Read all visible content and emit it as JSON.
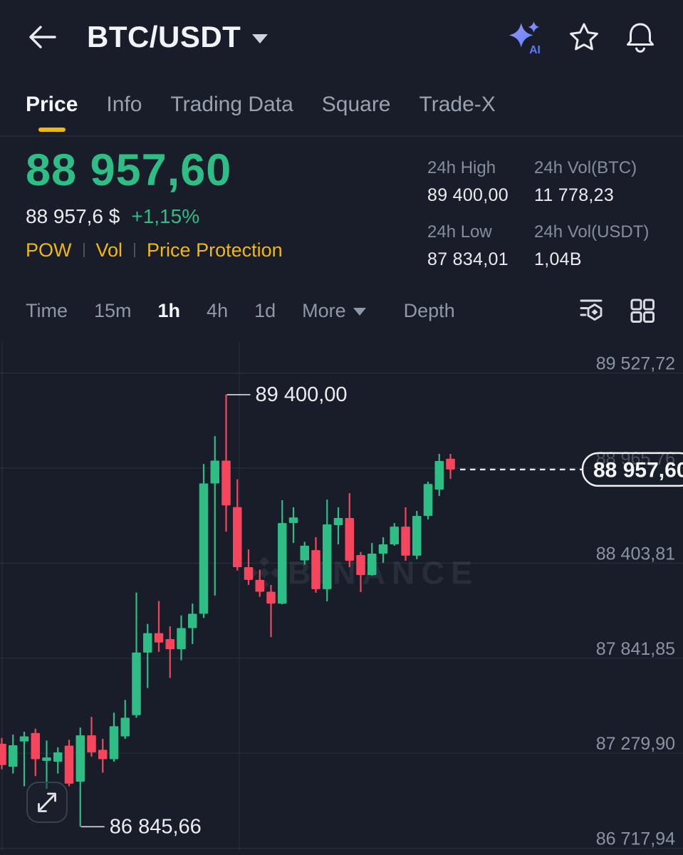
{
  "header": {
    "symbol": "BTC/USDT",
    "icons": {
      "back": "back-arrow",
      "ai": "ai-sparkle",
      "favorite": "star-outline",
      "notifications": "bell-outline",
      "symbol_caret": "chevron-down"
    }
  },
  "tabs": {
    "items": [
      "Price",
      "Info",
      "Trading Data",
      "Square",
      "Trade-X"
    ],
    "active": "Price"
  },
  "ticker": {
    "last_price": "88 957,60",
    "fiat_price": "88 957,6 $",
    "change_24h": "+1,15%",
    "tags": [
      "POW",
      "Vol",
      "Price Protection"
    ]
  },
  "stats": [
    {
      "label": "24h High",
      "value": "89 400,00"
    },
    {
      "label": "24h Vol(BTC)",
      "value": "11 778,23"
    },
    {
      "label": "24h Low",
      "value": "87 834,01"
    },
    {
      "label": "24h Vol(USDT)",
      "value": "1,04B"
    }
  ],
  "timeframes": {
    "items": [
      "Time",
      "15m",
      "1h",
      "4h",
      "1d"
    ],
    "active": "1h",
    "more_label": "More",
    "depth_label": "Depth",
    "icons": [
      "indicators-icon",
      "grid-layout-icon"
    ]
  },
  "colors": {
    "accent": "#F0B90B",
    "up": "#2EBD85",
    "down": "#F6465D",
    "muted_text": "#848E9C"
  },
  "chart_data": {
    "type": "candlestick",
    "pair": "BTC/USDT",
    "interval": "1h",
    "legend_position": "none",
    "grid": true,
    "watermark": "BINANCE",
    "colors": {
      "up": "#2EBD85",
      "down": "#F6465D"
    },
    "y_axis": {
      "gridline_labels": [
        {
          "price": 89527.72,
          "label": "89 527,72"
        },
        {
          "price": 88965.76,
          "label": "88 965,76"
        },
        {
          "price": 88403.81,
          "label": "88 403,81"
        },
        {
          "price": 87841.85,
          "label": "87 841,85"
        },
        {
          "price": 87279.9,
          "label": "87 279,90"
        },
        {
          "price": 86717.94,
          "label": "86 717,94"
        }
      ],
      "range": [
        86705,
        89715
      ]
    },
    "annotations": {
      "high": {
        "candle_index": 20,
        "price": 89400.0,
        "label": "89 400,00"
      },
      "low": {
        "candle_index": 7,
        "price": 86845.66,
        "label": "86 845,66"
      }
    },
    "current_price": {
      "value": 88957.6,
      "label": "88 957,60"
    },
    "candles": [
      [
        87336,
        87370,
        87185,
        87210
      ],
      [
        87200,
        87390,
        87160,
        87327
      ],
      [
        87350,
        87407,
        87085,
        87380
      ],
      [
        87400,
        87425,
        87145,
        87245
      ],
      [
        87235,
        87355,
        87070,
        87255
      ],
      [
        87230,
        87315,
        87160,
        87285
      ],
      [
        87325,
        87360,
        87085,
        87100
      ],
      [
        87112,
        87432,
        86845.66,
        87386
      ],
      [
        87386,
        87495,
        87260,
        87285
      ],
      [
        87300,
        87365,
        87165,
        87245
      ],
      [
        87245,
        87520,
        87230,
        87440
      ],
      [
        87380,
        87595,
        87365,
        87490
      ],
      [
        87505,
        88230,
        87490,
        87875
      ],
      [
        87875,
        88045,
        87665,
        87990
      ],
      [
        87990,
        88180,
        87880,
        87935
      ],
      [
        87955,
        88030,
        87725,
        87895
      ],
      [
        87895,
        88095,
        87830,
        88020
      ],
      [
        88020,
        88165,
        87925,
        88105
      ],
      [
        88105,
        88990,
        88080,
        88875
      ],
      [
        88875,
        89155,
        88212,
        89010
      ],
      [
        89010,
        89400,
        88590,
        88745
      ],
      [
        88735,
        88900,
        88360,
        88380
      ],
      [
        88380,
        88485,
        88275,
        88305
      ],
      [
        88305,
        88365,
        88205,
        88235
      ],
      [
        88235,
        88275,
        87967,
        88165
      ],
      [
        88165,
        88776,
        88160,
        88641
      ],
      [
        88641,
        88734,
        88523,
        88674
      ],
      [
        88420,
        88530,
        88395,
        88507
      ],
      [
        88481,
        88557,
        88229,
        88250
      ],
      [
        88250,
        88780,
        88178,
        88633
      ],
      [
        88629,
        88734,
        88515,
        88671
      ],
      [
        88671,
        88818,
        88380,
        88418
      ],
      [
        88452,
        88470,
        88233,
        88334
      ],
      [
        88334,
        88523,
        88330,
        88460
      ],
      [
        88460,
        88557,
        88406,
        88515
      ],
      [
        88515,
        88641,
        88507,
        88620
      ],
      [
        88620,
        88734,
        88418,
        88448
      ],
      [
        88448,
        88713,
        88427,
        88683
      ],
      [
        88683,
        88886,
        88662,
        88872
      ],
      [
        88839,
        89050,
        88801,
        89008
      ],
      [
        89021,
        89050,
        88902,
        88957.6
      ]
    ]
  }
}
